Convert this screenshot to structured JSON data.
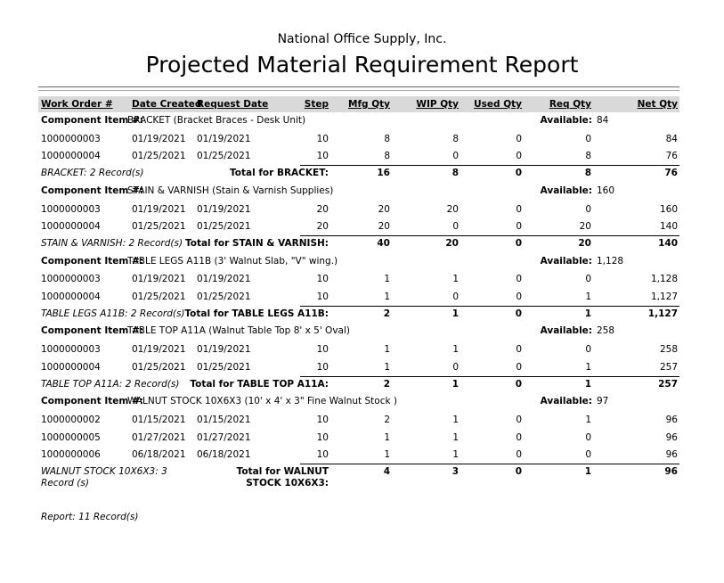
{
  "report": {
    "company": "National Office Supply, Inc.",
    "title": "Projected Material Requirement Report",
    "footer": "Report: 11 Record(s)"
  },
  "columns": [
    "Work Order #",
    "Date Created",
    "Request Date",
    "Step",
    "Mfg Qty",
    "WIP Qty",
    "Used Qty",
    "Req Qty",
    "Net Qty"
  ],
  "component_label": "Component Item #:",
  "available_label": "Available:",
  "groups": [
    {
      "item": "BRACKET (Bracket Braces - Desk Unit)",
      "available": "84",
      "records_text": "BRACKET: 2 Record(s)",
      "total_label": "Total for BRACKET:",
      "rows": [
        [
          "1000000003",
          "01/19/2021",
          "01/19/2021",
          "10",
          "8",
          "8",
          "0",
          "0",
          "84"
        ],
        [
          "1000000004",
          "01/25/2021",
          "01/25/2021",
          "10",
          "8",
          "0",
          "0",
          "8",
          "76"
        ]
      ],
      "totals": [
        "16",
        "8",
        "0",
        "8",
        "76"
      ]
    },
    {
      "item": "STAIN & VARNISH (Stain & Varnish Supplies)",
      "available": "160",
      "records_text": "STAIN & VARNISH: 2 Record(s)",
      "total_label": "Total for STAIN & VARNISH:",
      "rows": [
        [
          "1000000003",
          "01/19/2021",
          "01/19/2021",
          "20",
          "20",
          "20",
          "0",
          "0",
          "160"
        ],
        [
          "1000000004",
          "01/25/2021",
          "01/25/2021",
          "20",
          "20",
          "0",
          "0",
          "20",
          "140"
        ]
      ],
      "totals": [
        "40",
        "20",
        "0",
        "20",
        "140"
      ]
    },
    {
      "item": "TABLE LEGS A11B (3' Walnut Slab, \"V\" wing.)",
      "available": "1,128",
      "records_text": "TABLE LEGS A11B: 2 Record(s)",
      "total_label": "Total for TABLE LEGS A11B:",
      "rows": [
        [
          "1000000003",
          "01/19/2021",
          "01/19/2021",
          "10",
          "1",
          "1",
          "0",
          "0",
          "1,128"
        ],
        [
          "1000000004",
          "01/25/2021",
          "01/25/2021",
          "10",
          "1",
          "0",
          "0",
          "1",
          "1,127"
        ]
      ],
      "totals": [
        "2",
        "1",
        "0",
        "1",
        "1,127"
      ]
    },
    {
      "item": "TABLE TOP A11A (Walnut Table Top 8' x 5' Oval)",
      "available": "258",
      "records_text": "TABLE TOP A11A: 2 Record(s)",
      "total_label": "Total for TABLE TOP A11A:",
      "rows": [
        [
          "1000000003",
          "01/19/2021",
          "01/19/2021",
          "10",
          "1",
          "1",
          "0",
          "0",
          "258"
        ],
        [
          "1000000004",
          "01/25/2021",
          "01/25/2021",
          "10",
          "1",
          "0",
          "0",
          "1",
          "257"
        ]
      ],
      "totals": [
        "2",
        "1",
        "0",
        "1",
        "257"
      ]
    },
    {
      "item": "WALNUT STOCK 10X6X3 (10' x 4' x 3\" Fine Walnut Stock )",
      "available": "97",
      "records_text": "WALNUT STOCK 10X6X3: 3 Record (s)",
      "total_label": "Total for WALNUT STOCK 10X6X3:",
      "rows": [
        [
          "1000000002",
          "01/15/2021",
          "01/15/2021",
          "10",
          "2",
          "1",
          "0",
          "1",
          "96"
        ],
        [
          "1000000005",
          "01/27/2021",
          "01/27/2021",
          "10",
          "1",
          "1",
          "0",
          "0",
          "96"
        ],
        [
          "1000000006",
          "06/18/2021",
          "06/18/2021",
          "10",
          "1",
          "1",
          "0",
          "0",
          "96"
        ]
      ],
      "totals": [
        "4",
        "3",
        "0",
        "1",
        "96"
      ]
    }
  ]
}
